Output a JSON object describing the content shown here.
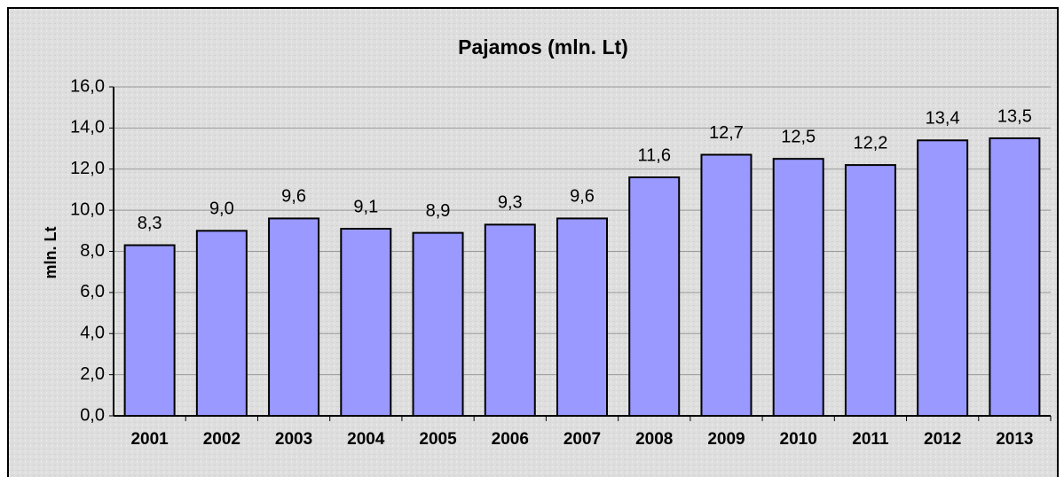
{
  "chart_data": {
    "type": "bar",
    "title": "Pajamos (mln. Lt)",
    "y_label": "mln. Lt",
    "categories": [
      "2001",
      "2002",
      "2003",
      "2004",
      "2005",
      "2006",
      "2007",
      "2008",
      "2009",
      "2010",
      "2011",
      "2012",
      "2013"
    ],
    "values": [
      8.3,
      9.0,
      9.6,
      9.1,
      8.9,
      9.3,
      9.6,
      11.6,
      12.7,
      12.5,
      12.2,
      13.4,
      13.5
    ],
    "value_labels": [
      "8,3",
      "9,0",
      "9,6",
      "9,1",
      "8,9",
      "9,3",
      "9,6",
      "11,6",
      "12,7",
      "12,5",
      "12,2",
      "13,4",
      "13,5"
    ],
    "color": "#9999ff",
    "ylim": [
      0,
      16
    ],
    "yticks": [
      {
        "value": 0,
        "label": "0,0"
      },
      {
        "value": 2,
        "label": "2,0"
      },
      {
        "value": 4,
        "label": "4,0"
      },
      {
        "value": 6,
        "label": "6,0"
      },
      {
        "value": 8,
        "label": "8,0"
      },
      {
        "value": 10,
        "label": "10,0"
      },
      {
        "value": 12,
        "label": "12,0"
      },
      {
        "value": 14,
        "label": "14,0"
      },
      {
        "value": 16,
        "label": "16,0"
      }
    ],
    "grid": true
  }
}
